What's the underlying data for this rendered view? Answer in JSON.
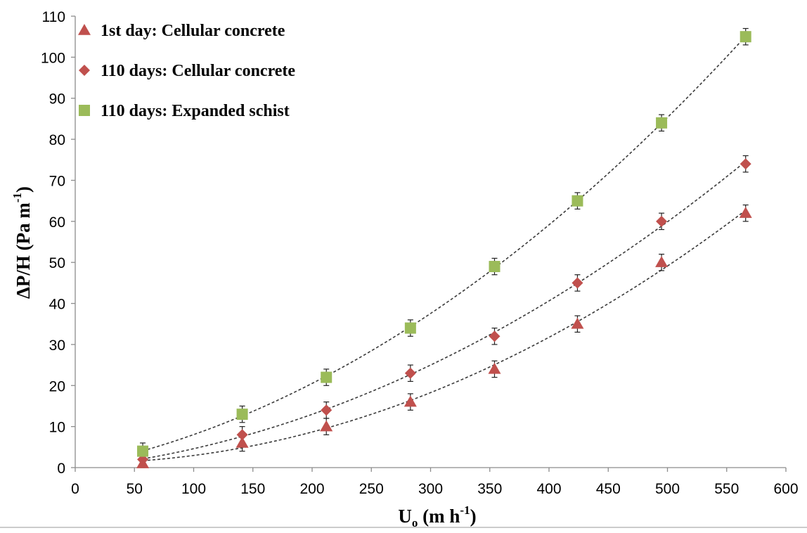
{
  "chart_data": {
    "type": "scatter",
    "title": "",
    "xlabel": {
      "main": "U",
      "sub": "o",
      "unit_open": " (m h",
      "unit_sup": "-1",
      "unit_close": ")"
    },
    "ylabel": {
      "main": "ΔP/H (Pa m",
      "sup": "-1",
      "close": ")"
    },
    "xlim": [
      0,
      600
    ],
    "ylim": [
      0,
      110
    ],
    "x_ticks": [
      "0",
      "50",
      "100",
      "150",
      "200",
      "250",
      "300",
      "350",
      "400",
      "450",
      "500",
      "550",
      "600"
    ],
    "y_ticks": [
      "0",
      "10",
      "20",
      "30",
      "40",
      "50",
      "60",
      "70",
      "80",
      "90",
      "100",
      "110"
    ],
    "grid": false,
    "legend_position": "top-left",
    "trendlines": "dashed polynomial",
    "error_bars": true,
    "series": [
      {
        "name": "1st day: Cellular concrete",
        "marker": "triangle",
        "color": "#c0504d",
        "x": [
          57,
          141,
          212,
          283,
          354,
          424,
          495,
          566
        ],
        "y": [
          1,
          6,
          10,
          16,
          24,
          35,
          50,
          62
        ],
        "error": [
          1.5,
          2,
          2,
          2,
          2,
          2,
          2,
          2
        ]
      },
      {
        "name": "110 days: Cellular concrete",
        "marker": "diamond",
        "color": "#c0504d",
        "x": [
          57,
          141,
          212,
          283,
          354,
          424,
          495,
          566
        ],
        "y": [
          2,
          8,
          14,
          23,
          32,
          45,
          60,
          74
        ],
        "error": [
          1.5,
          2,
          2,
          2,
          2,
          2,
          2,
          2
        ]
      },
      {
        "name": "110 days: Expanded schist",
        "marker": "square",
        "color": "#9bbb59",
        "x": [
          57,
          141,
          212,
          283,
          354,
          424,
          495,
          566
        ],
        "y": [
          4,
          13,
          22,
          34,
          49,
          65,
          84,
          105
        ],
        "error": [
          2,
          2,
          2,
          2,
          2,
          2,
          2,
          2
        ]
      }
    ]
  }
}
